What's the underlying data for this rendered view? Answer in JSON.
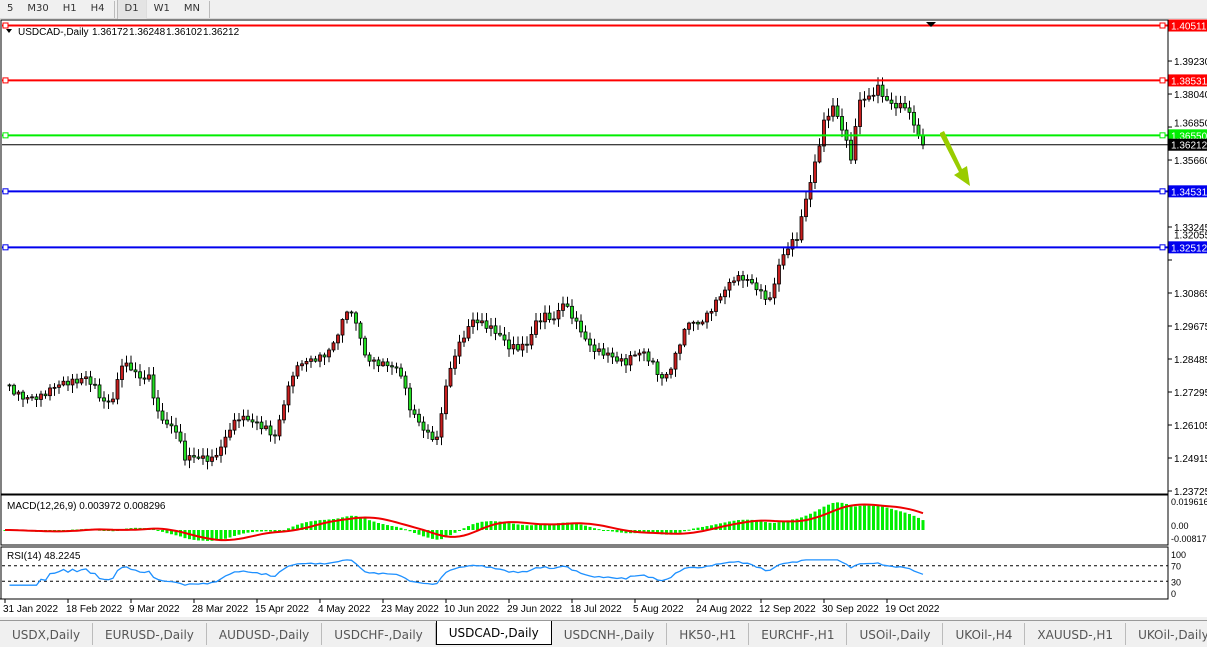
{
  "toolbar": {
    "timeframes": [
      "5",
      "M30",
      "H1",
      "H4",
      "D1",
      "W1",
      "MN"
    ],
    "active": "D1"
  },
  "chart": {
    "header": "USDCAD-,Daily  1.36172 1.36248 1.36102 1.36212",
    "symbol_menu_icon": "triangle-down-icon",
    "colors": {
      "bull_candle": "#c81e1e",
      "bear_candle": "#22dd22",
      "resistance": "#ff0000",
      "pivot": "#00ee00",
      "support": "#0000ee",
      "arrow": "#99cc00",
      "macd_hist": "#00ee00",
      "macd_signal": "#ee0000",
      "rsi": "#1e90ff"
    }
  },
  "chart_data": [
    {
      "type": "candlestick",
      "title": "USDCAD-,Daily",
      "ohlc_last": {
        "open": 1.36172,
        "high": 1.36248,
        "low": 1.36102,
        "close": 1.36212
      },
      "approx_closes_every_2_days": [
        1.2755,
        1.2722,
        1.2704,
        1.2712,
        1.2722,
        1.2744,
        1.2755,
        1.2755,
        1.2762,
        1.2784,
        1.2755,
        1.2697,
        1.2704,
        1.2823,
        1.2809,
        1.278,
        1.2791,
        1.2661,
        1.2614,
        1.2585,
        1.2484,
        1.2495,
        1.2499,
        1.2495,
        1.2531,
        1.2592,
        1.2629,
        1.2629,
        1.2621,
        1.2607,
        1.2571,
        1.2683,
        1.2787,
        1.2831,
        1.2849,
        1.2863,
        1.2881,
        1.2935,
        1.3018,
        1.2978,
        1.2863,
        1.2845,
        1.2838,
        1.282,
        1.2787,
        1.2665,
        1.2621,
        1.2585,
        1.2567,
        1.2751,
        1.2859,
        1.2924,
        1.2989,
        1.2986,
        1.2968,
        1.2935,
        1.2885,
        1.2881,
        1.2899,
        1.2986,
        1.3014,
        1.2993,
        1.3047,
        1.2996,
        1.2946,
        1.2899,
        1.2885,
        1.287,
        1.2841,
        1.2827,
        1.2863,
        1.2874,
        1.2838,
        1.278,
        1.2812,
        1.2899,
        1.2978,
        1.2975,
        1.3014,
        1.3061,
        1.3097,
        1.313,
        1.3133,
        1.3123,
        1.3094,
        1.3069,
        1.3187,
        1.3245,
        1.3278,
        1.3425,
        1.3559,
        1.371,
        1.3761,
        1.3674,
        1.3566,
        1.3782,
        1.3797,
        1.3836,
        1.3782,
        1.3754,
        1.3754,
        1.3692,
        1.362
      ],
      "ylim": [
        1.23725,
        1.40511
      ],
      "y_ticks": [
        "1.39230",
        "1.38040",
        "1.36850",
        "1.35660",
        "1.33245",
        "1.32055",
        "1.30865",
        "1.29675",
        "1.28485",
        "1.27295",
        "1.26105",
        "1.24915",
        "1.23725"
      ],
      "x_ticks": [
        "31 Jan 2022",
        "18 Feb 2022",
        "9 Mar 2022",
        "28 Mar 2022",
        "15 Apr 2022",
        "4 May 2022",
        "23 May 2022",
        "10 Jun 2022",
        "29 Jun 2022",
        "18 Jul 2022",
        "5 Aug 2022",
        "24 Aug 2022",
        "12 Sep 2022",
        "30 Sep 2022",
        "19 Oct 2022"
      ],
      "horizontal_levels": [
        {
          "price": 1.40511,
          "label": "1.40511",
          "role": "resistance"
        },
        {
          "price": 1.38531,
          "label": "1.38531",
          "role": "resistance"
        },
        {
          "price": 1.3655,
          "label": "1.36550",
          "role": "pivot"
        },
        {
          "price": 1.34531,
          "label": "1.34531",
          "role": "support"
        },
        {
          "price": 1.32512,
          "label": "1.32512",
          "role": "support"
        }
      ],
      "current_price": {
        "price": 1.36212,
        "label": "1.36212"
      },
      "annotation": "down-arrow"
    },
    {
      "type": "bar+line",
      "title": "MACD(12,26,9) 0.003972 0.008296",
      "y_ticks": [
        "0.019616",
        "0.00",
        "-0.008178"
      ],
      "ylim": [
        -0.008178,
        0.019616
      ]
    },
    {
      "type": "line",
      "title": "RSI(14) 48.2245",
      "y_ticks": [
        "100",
        "70",
        "30",
        "0"
      ],
      "levels": [
        70,
        30
      ],
      "ylim": [
        0,
        100
      ]
    }
  ],
  "tabs": {
    "items": [
      "USDX,Daily",
      "EURUSD-,Daily",
      "AUDUSD-,Daily",
      "USDCHF-,Daily",
      "USDCAD-,Daily",
      "USDCNH-,Daily",
      "HK50-,H1",
      "EURCHF-,H1",
      "USOil-,Daily",
      "UKOil-,H4",
      "XAUUSD-,H1",
      "UKOil-,Daily"
    ],
    "active": "USDCAD-,Daily",
    "prev_icon": "scroll-left-icon",
    "next_icon": "scroll-right-icon"
  }
}
